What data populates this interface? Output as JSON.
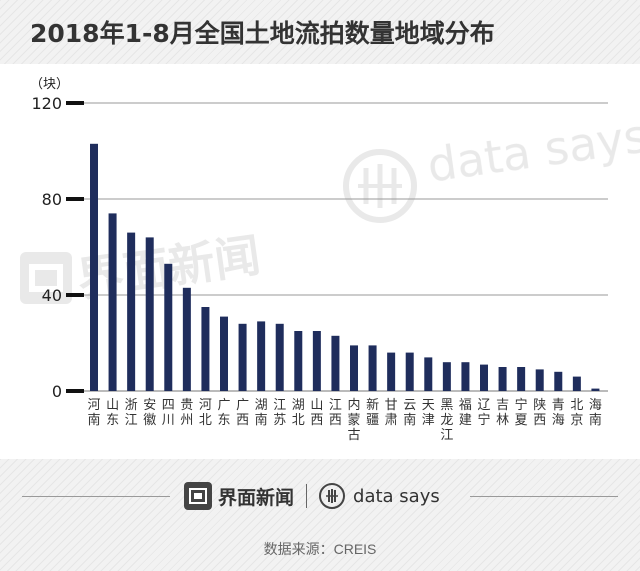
{
  "title": "2018年1-8月全国土地流拍数量地域分布",
  "chart_data": {
    "type": "bar",
    "title": "2018年1-8月全国土地流拍数量地域分布",
    "ylabel": "（块）",
    "xlabel": "",
    "ylim": [
      0,
      120
    ],
    "yticks": [
      0,
      40,
      80,
      120
    ],
    "grid": true,
    "bar_color": "#1f2d5c",
    "categories": [
      "河南",
      "山东",
      "浙江",
      "安徽",
      "四川",
      "贵州",
      "河北",
      "广东",
      "广西",
      "湖南",
      "江苏",
      "湖北",
      "山西",
      "江西",
      "内蒙古",
      "新疆",
      "甘肃",
      "云南",
      "天津",
      "黑龙江",
      "福建",
      "辽宁",
      "吉林",
      "宁夏",
      "陕西",
      "青海",
      "北京",
      "海南"
    ],
    "values": [
      103,
      74,
      66,
      64,
      53,
      43,
      35,
      31,
      28,
      29,
      28,
      25,
      25,
      23,
      19,
      19,
      16,
      16,
      14,
      12,
      12,
      11,
      10,
      10,
      9,
      8,
      6,
      1
    ]
  },
  "watermark": {
    "jiemian": "界面新闻",
    "datasays": "data says"
  },
  "footer": {
    "brand_jiemian": "界面新闻",
    "brand_datasays": "data says",
    "source_label": "数据来源：",
    "source_value": "CREIS"
  }
}
